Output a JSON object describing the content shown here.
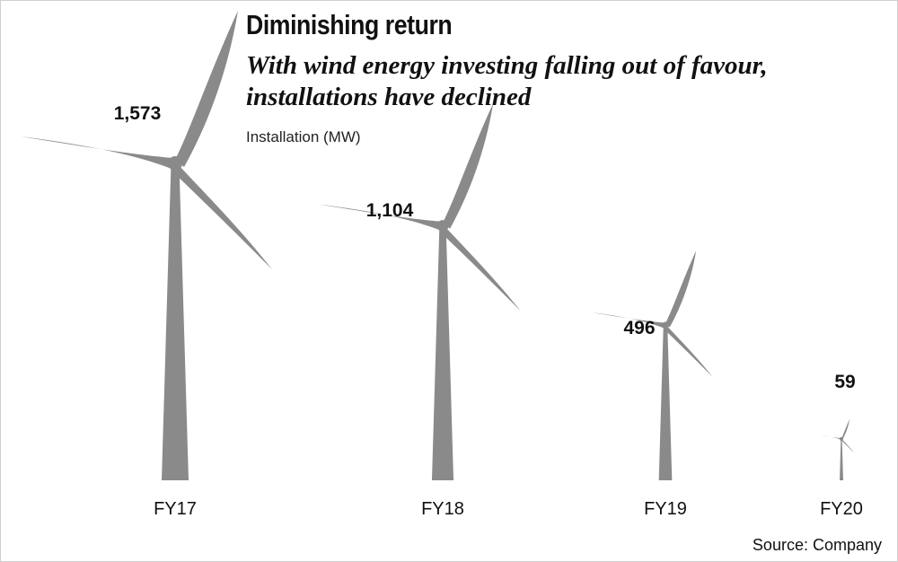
{
  "title": "Diminishing return",
  "subtitle": [
    "With wind energy investing falling out of favour,",
    "installations have declined"
  ],
  "source": "Source: Company",
  "colors": {
    "turbine": "#8a8a8a",
    "text": "#111111"
  },
  "chart_data": {
    "type": "bar",
    "title": "Diminishing return",
    "ylabel": "Installation (MW)",
    "xlabel": "",
    "categories": [
      "FY17",
      "FY18",
      "FY19",
      "FY20"
    ],
    "values": [
      1573,
      1104,
      496,
      59
    ],
    "value_labels": [
      "1,573",
      "1,104",
      "496",
      "59"
    ],
    "ylim": [
      0,
      1573
    ],
    "grid": false,
    "legend": "none"
  }
}
